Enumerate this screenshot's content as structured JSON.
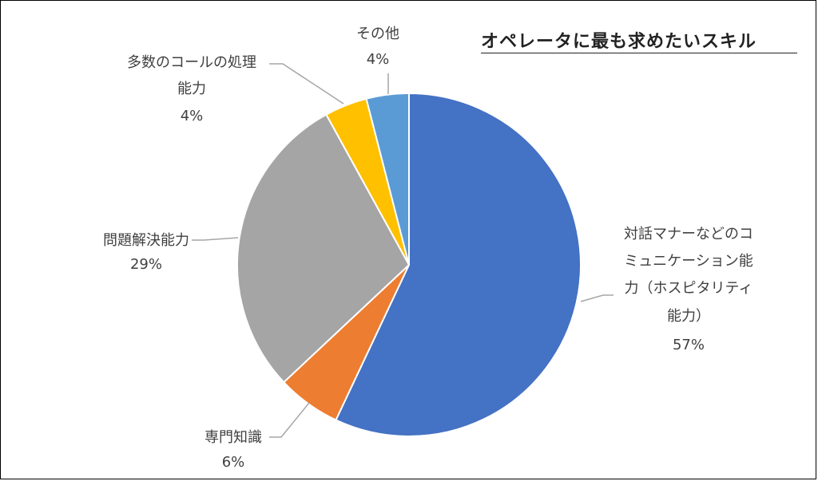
{
  "chart_data": {
    "type": "pie",
    "title": "オペレータに最も求めたいスキル",
    "start_angle_deg": 0,
    "direction": "clockwise",
    "slices": [
      {
        "name": "対話マナーなどのコミュニケーション能力（ホスピタリティ能力）",
        "label_lines": [
          "対話マナーなどのコ",
          "ミュニケーション能",
          "力（ホスピタリティ",
          "能力）"
        ],
        "percent_label": "57%",
        "value": 57,
        "color": "#4472C4"
      },
      {
        "name": "専門知識",
        "label_lines": [
          "専門知識"
        ],
        "percent_label": "6%",
        "value": 6,
        "color": "#ED7D31"
      },
      {
        "name": "問題解決能力",
        "label_lines": [
          "問題解決能力"
        ],
        "percent_label": "29%",
        "value": 29,
        "color": "#A5A5A5"
      },
      {
        "name": "多数のコールの処理能力",
        "label_lines": [
          "多数のコールの処理",
          "能力"
        ],
        "percent_label": "4%",
        "value": 4,
        "color": "#FFC000"
      },
      {
        "name": "その他",
        "label_lines": [
          "その他"
        ],
        "percent_label": "4%",
        "value": 4,
        "color": "#5B9BD5"
      }
    ],
    "legend": "none"
  }
}
